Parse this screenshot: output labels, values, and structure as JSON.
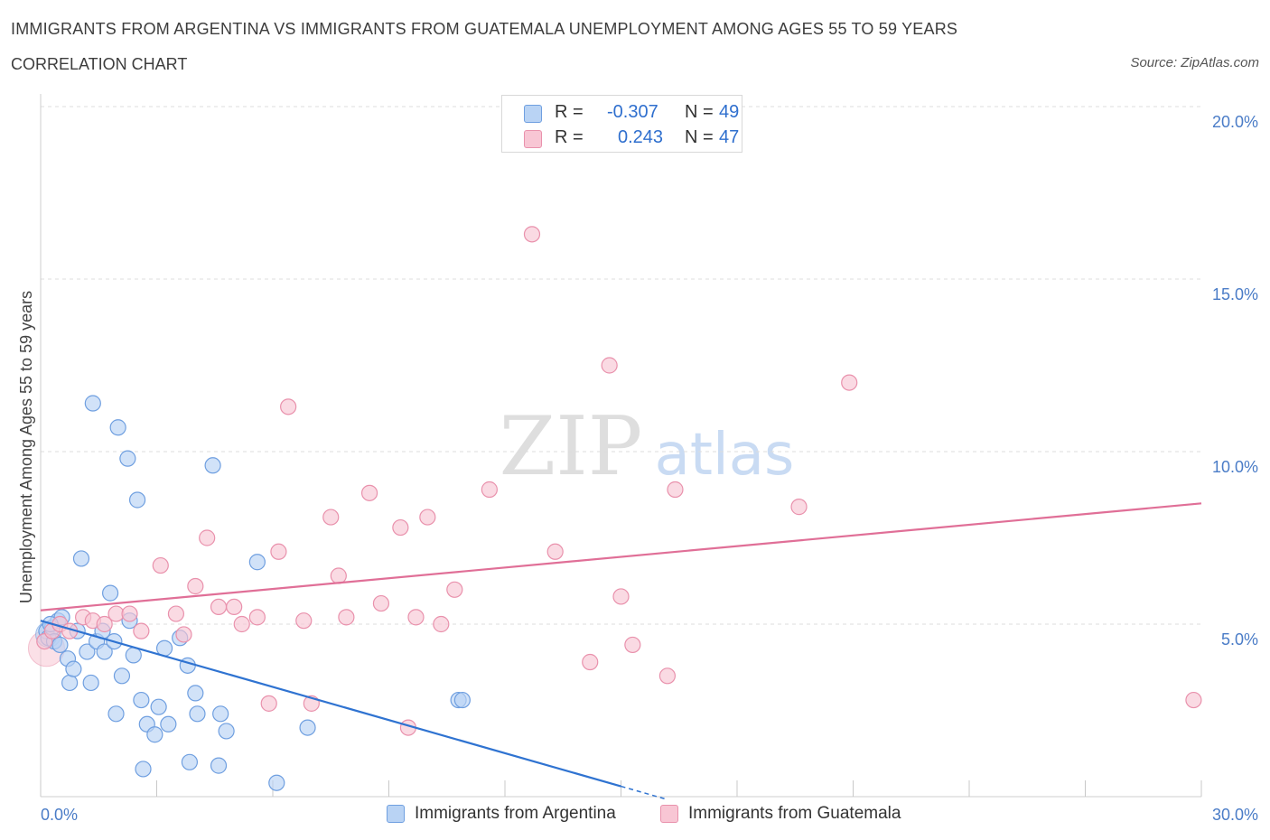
{
  "header": {
    "title": "IMMIGRANTS FROM ARGENTINA VS IMMIGRANTS FROM GUATEMALA UNEMPLOYMENT AMONG AGES 55 TO 59 YEARS",
    "subtitle": "CORRELATION CHART",
    "source": "Source: ZipAtlas.com"
  },
  "legend": {
    "rows": [
      {
        "r_label": "R =",
        "r_value": "-0.307",
        "n_label": "N =",
        "n_value": "49"
      },
      {
        "r_label": "R =",
        "r_value": "0.243",
        "n_label": "N =",
        "n_value": "47"
      }
    ],
    "bottom": [
      "Immigrants from Argentina",
      "Immigrants from Guatemala"
    ]
  },
  "watermark": {
    "zip": "ZIP",
    "atlas": "atlas"
  },
  "colors": {
    "argentina_fill": "#b9d3f4",
    "argentina_stroke": "#6f9fe0",
    "argentina_line": "#2f73d1",
    "guatemala_fill": "#f8c6d4",
    "guatemala_stroke": "#e991ac",
    "guatemala_line": "#e06f97",
    "grid": "#dcdcdc",
    "tick_text": "#4a7cc7"
  },
  "chart_data": {
    "type": "scatter",
    "title": "IMMIGRANTS FROM ARGENTINA VS IMMIGRANTS FROM GUATEMALA UNEMPLOYMENT AMONG AGES 55 TO 59 YEARS",
    "xlabel": "",
    "ylabel": "Unemployment Among Ages 55 to 59 years",
    "xlim": [
      0,
      30
    ],
    "ylim": [
      0,
      20
    ],
    "x_tick_labels": [
      "0.0%",
      "30.0%"
    ],
    "y_ticks": [
      5,
      10,
      15,
      20
    ],
    "y_tick_labels": [
      "5.0%",
      "10.0%",
      "15.0%",
      "20.0%"
    ],
    "grid": true,
    "legend_position": "top-center",
    "series": [
      {
        "name": "Immigrants from Argentina",
        "points": [
          [
            0.15,
            4.8
          ],
          [
            0.2,
            4.6
          ],
          [
            0.3,
            4.9
          ],
          [
            0.35,
            4.5
          ],
          [
            0.45,
            5.1
          ],
          [
            0.5,
            4.4
          ],
          [
            0.55,
            5.2
          ],
          [
            0.7,
            4.0
          ],
          [
            0.75,
            3.3
          ],
          [
            0.85,
            3.7
          ],
          [
            0.95,
            4.8
          ],
          [
            1.05,
            6.9
          ],
          [
            1.2,
            4.2
          ],
          [
            1.3,
            3.3
          ],
          [
            1.35,
            11.4
          ],
          [
            1.45,
            4.5
          ],
          [
            1.6,
            4.8
          ],
          [
            1.65,
            4.2
          ],
          [
            1.8,
            5.9
          ],
          [
            1.9,
            4.5
          ],
          [
            1.95,
            2.4
          ],
          [
            2.0,
            10.7
          ],
          [
            2.1,
            3.5
          ],
          [
            2.25,
            9.8
          ],
          [
            2.3,
            5.1
          ],
          [
            2.4,
            4.1
          ],
          [
            2.5,
            8.6
          ],
          [
            2.6,
            2.8
          ],
          [
            2.65,
            0.8
          ],
          [
            2.75,
            2.1
          ],
          [
            2.95,
            1.8
          ],
          [
            3.05,
            2.6
          ],
          [
            3.2,
            4.3
          ],
          [
            3.3,
            2.1
          ],
          [
            3.6,
            4.6
          ],
          [
            3.8,
            3.8
          ],
          [
            3.85,
            1.0
          ],
          [
            4.0,
            3.0
          ],
          [
            4.05,
            2.4
          ],
          [
            4.45,
            9.6
          ],
          [
            4.6,
            0.9
          ],
          [
            4.65,
            2.4
          ],
          [
            4.8,
            1.9
          ],
          [
            5.6,
            6.8
          ],
          [
            6.1,
            0.4
          ],
          [
            6.9,
            2.0
          ],
          [
            10.8,
            2.8
          ],
          [
            10.9,
            2.8
          ],
          [
            0.25,
            5.0
          ]
        ]
      },
      {
        "name": "Immigrants from Guatemala",
        "points": [
          [
            0.1,
            4.5
          ],
          [
            0.3,
            4.8
          ],
          [
            0.5,
            5.0
          ],
          [
            0.75,
            4.8
          ],
          [
            1.1,
            5.2
          ],
          [
            1.35,
            5.1
          ],
          [
            1.65,
            5.0
          ],
          [
            1.95,
            5.3
          ],
          [
            2.3,
            5.3
          ],
          [
            2.6,
            4.8
          ],
          [
            3.1,
            6.7
          ],
          [
            3.5,
            5.3
          ],
          [
            3.7,
            4.7
          ],
          [
            4.0,
            6.1
          ],
          [
            4.3,
            7.5
          ],
          [
            4.6,
            5.5
          ],
          [
            5.0,
            5.5
          ],
          [
            5.2,
            5.0
          ],
          [
            5.6,
            5.2
          ],
          [
            5.9,
            2.7
          ],
          [
            6.15,
            7.1
          ],
          [
            6.4,
            11.3
          ],
          [
            6.8,
            5.1
          ],
          [
            7.0,
            2.7
          ],
          [
            7.5,
            8.1
          ],
          [
            7.7,
            6.4
          ],
          [
            7.9,
            5.2
          ],
          [
            8.5,
            8.8
          ],
          [
            8.8,
            5.6
          ],
          [
            9.3,
            7.8
          ],
          [
            9.5,
            2.0
          ],
          [
            9.7,
            5.2
          ],
          [
            10.0,
            8.1
          ],
          [
            10.35,
            5.0
          ],
          [
            10.7,
            6.0
          ],
          [
            11.6,
            8.9
          ],
          [
            12.7,
            16.3
          ],
          [
            13.3,
            7.1
          ],
          [
            14.2,
            3.9
          ],
          [
            14.7,
            12.5
          ],
          [
            15.0,
            5.8
          ],
          [
            15.3,
            4.4
          ],
          [
            16.2,
            3.5
          ],
          [
            16.4,
            8.9
          ],
          [
            19.6,
            8.4
          ],
          [
            20.9,
            12.0
          ],
          [
            29.8,
            2.8
          ]
        ]
      }
    ],
    "trendlines": [
      {
        "name": "Immigrants from Argentina",
        "x": [
          0,
          15.0
        ],
        "y": [
          5.1,
          0.3
        ],
        "dashed_extension_x": [
          15.0,
          16.2
        ]
      },
      {
        "name": "Immigrants from Guatemala",
        "x": [
          0,
          30
        ],
        "y": [
          5.4,
          8.5
        ]
      }
    ]
  }
}
